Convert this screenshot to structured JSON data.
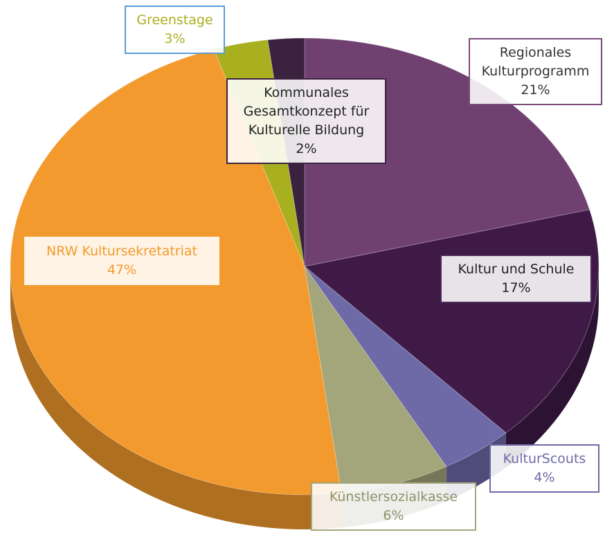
{
  "chart_data": {
    "type": "pie",
    "categories": [
      "Regionales Kulturprogramm",
      "Kultur und Schule",
      "KulturScouts",
      "Künstlersozialkasse",
      "NRW Kultursekretatriat",
      "Greenstage",
      "Kommunales Gesamtkonzept für Kulturelle Bildung"
    ],
    "values": [
      21,
      17,
      4,
      6,
      47,
      3,
      2
    ],
    "value_labels": [
      "21%",
      "17%",
      "4%",
      "6%",
      "47%",
      "3%",
      "2%"
    ],
    "colors": [
      "#704070",
      "#3f1a47",
      "#6e6aa8",
      "#a3a57a",
      "#f39a2e",
      "#a9b01f",
      "#3b2340"
    ]
  }
}
